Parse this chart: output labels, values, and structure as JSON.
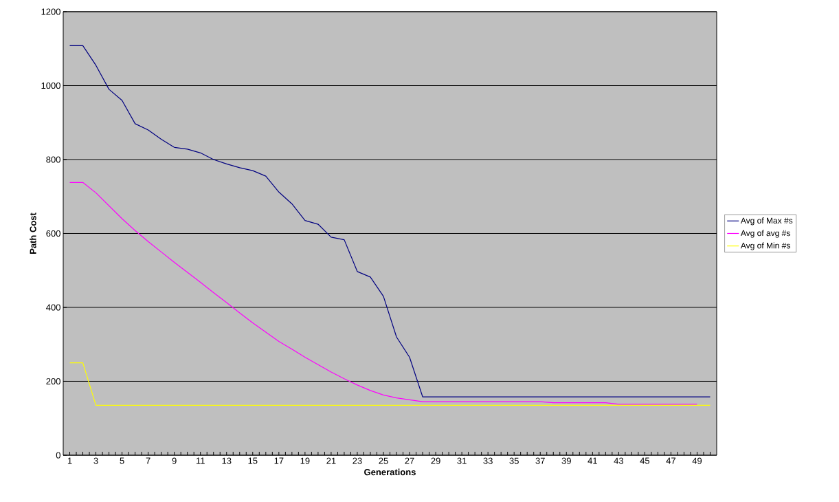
{
  "chart_data": {
    "type": "line",
    "xlabel": "Generations",
    "ylabel": "Path Cost",
    "categories": [
      "1",
      null,
      "3",
      null,
      "5",
      null,
      "7",
      null,
      "9",
      null,
      "11",
      null,
      "13",
      null,
      "15",
      null,
      "17",
      null,
      "19",
      null,
      "21",
      null,
      "23",
      null,
      "25",
      null,
      "27",
      null,
      "29",
      null,
      "31",
      null,
      "33",
      null,
      "35",
      null,
      "37",
      null,
      "39",
      null,
      "41",
      null,
      "43",
      null,
      "45",
      null,
      "47",
      null,
      "49",
      null
    ],
    "series": [
      {
        "name": "Avg of Max #s",
        "color": "#000080",
        "values": [
          1108,
          1108,
          1055,
          990,
          960,
          897,
          880,
          855,
          833,
          828,
          818,
          800,
          788,
          778,
          770,
          755,
          712,
          680,
          635,
          625,
          590,
          583,
          497,
          482,
          430,
          320,
          265,
          158,
          158,
          158,
          158,
          158,
          158,
          158,
          158,
          158,
          158,
          158,
          158,
          158,
          158,
          158,
          158,
          158,
          158,
          158,
          158,
          158,
          158,
          158
        ]
      },
      {
        "name": "Avg of avg #s",
        "color": "#ff00ff",
        "values": [
          738,
          738,
          710,
          675,
          640,
          608,
          578,
          550,
          522,
          495,
          468,
          440,
          413,
          385,
          358,
          333,
          308,
          287,
          265,
          245,
          225,
          207,
          190,
          175,
          163,
          155,
          150,
          145,
          145,
          145,
          145,
          145,
          145,
          145,
          145,
          145,
          145,
          142,
          142,
          142,
          142,
          142,
          138,
          138,
          138,
          138,
          138,
          138,
          138,
          null
        ]
      },
      {
        "name": "Avg of Min #s",
        "color": "#ffff00",
        "values": [
          250,
          250,
          135,
          135,
          135,
          135,
          135,
          135,
          135,
          135,
          135,
          135,
          135,
          135,
          135,
          135,
          135,
          135,
          135,
          135,
          135,
          135,
          135,
          135,
          135,
          135,
          135,
          135,
          135,
          135,
          135,
          135,
          135,
          135,
          135,
          135,
          135,
          135,
          135,
          135,
          135,
          135,
          135,
          135,
          135,
          135,
          135,
          135,
          135,
          135
        ]
      }
    ],
    "ylim": [
      0,
      1200
    ],
    "yticks": [
      0,
      200,
      400,
      600,
      800,
      1000,
      1200
    ],
    "grid": "y",
    "legend": "right",
    "marker": "none"
  }
}
